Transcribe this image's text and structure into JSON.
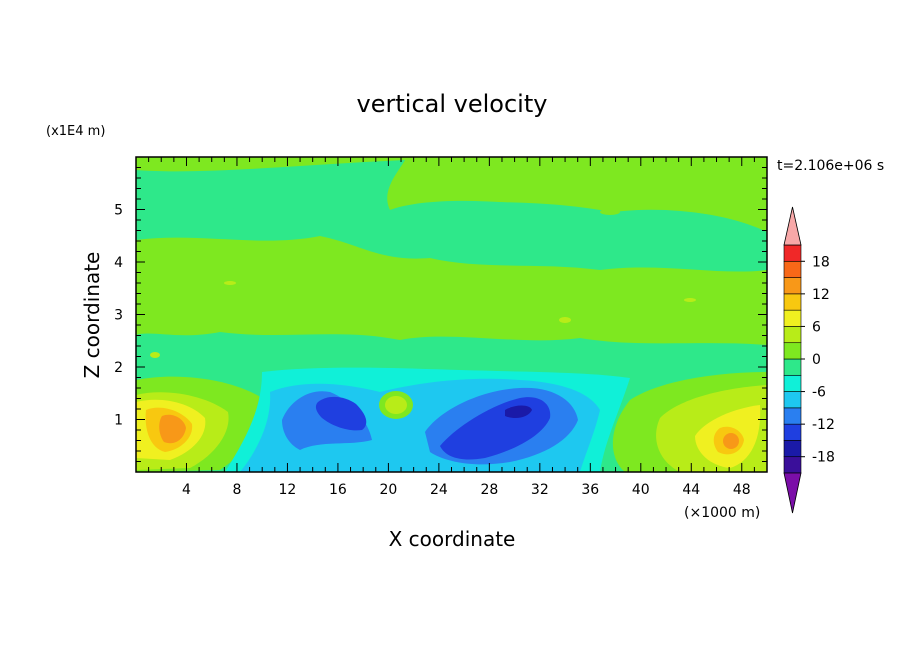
{
  "chart_data": {
    "type": "heatmap",
    "title": "vertical velocity",
    "xlabel": "X coordinate",
    "ylabel": "Z coordinate",
    "x_unit_label": "(×1000 m)",
    "y_unit_label": "(x1E4 m)",
    "time_label": "t=2.106e+06 s",
    "xlim": [
      0,
      50
    ],
    "ylim": [
      0,
      6
    ],
    "x_ticks": [
      4,
      8,
      12,
      16,
      20,
      24,
      28,
      32,
      36,
      40,
      44,
      48
    ],
    "y_ticks": [
      1,
      2,
      3,
      4,
      5
    ],
    "colorbar": {
      "tick_labels": [
        "18",
        "12",
        "6",
        "0",
        "-6",
        "-12",
        "-18"
      ],
      "levels": [
        -21,
        -18,
        -15,
        -12,
        -9,
        -6,
        -3,
        0,
        3,
        6,
        9,
        12,
        15,
        18,
        21
      ],
      "colors": [
        "#7b0ea8",
        "#3a0f9a",
        "#1a1aa8",
        "#1f3fe0",
        "#2a7ff0",
        "#1ec8f0",
        "#10f0d8",
        "#2ee88a",
        "#7ee820",
        "#b8ec18",
        "#f0f020",
        "#f8c810",
        "#f89818",
        "#f86818",
        "#f02828",
        "#f8a8a8"
      ],
      "extend": "both"
    },
    "features": [
      {
        "x": 3.5,
        "z": 0.85,
        "value": 12
      },
      {
        "x": 46.5,
        "z": 0.6,
        "value": 12
      },
      {
        "x": 17,
        "z": 1.1,
        "value": -12
      },
      {
        "x": 30,
        "z": 0.9,
        "value": -15
      },
      {
        "x": 20.5,
        "z": 1.25,
        "value": 6
      },
      {
        "x": 10,
        "z": 4.3,
        "value": 3
      },
      {
        "x": 24,
        "z": 3.8,
        "value": 3
      }
    ]
  }
}
